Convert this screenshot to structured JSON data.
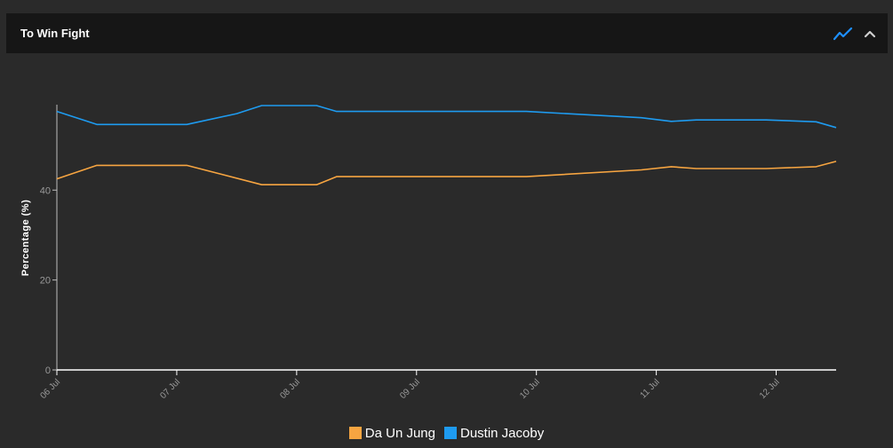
{
  "panel": {
    "title": "To Win Fight",
    "icons": {
      "chart_type": "line-chart-icon",
      "collapse": "chevron-up-icon"
    },
    "accent": "#1e90ff"
  },
  "chart_data": {
    "type": "line",
    "xlabel": "",
    "ylabel": "Percentage (%)",
    "ylim": [
      0,
      59
    ],
    "yticks": [
      0,
      20,
      40
    ],
    "xlim": [
      "2024-07-06",
      "2024-07-12 12:00"
    ],
    "xticks": [
      {
        "x": "2024-07-06",
        "label": "06 Jul"
      },
      {
        "x": "2024-07-07",
        "label": "07 Jul"
      },
      {
        "x": "2024-07-08",
        "label": "08 Jul"
      },
      {
        "x": "2024-07-09",
        "label": "09 Jul"
      },
      {
        "x": "2024-07-10",
        "label": "10 Jul"
      },
      {
        "x": "2024-07-11",
        "label": "11 Jul"
      },
      {
        "x": "2024-07-12",
        "label": "12 Jul"
      }
    ],
    "grid": false,
    "legend": "bottom-center",
    "series": [
      {
        "name": "Da Un Jung",
        "color": "#f7a541",
        "points": [
          [
            "2024-07-06 00:00",
            42.5
          ],
          [
            "2024-07-06 08:00",
            45.5
          ],
          [
            "2024-07-07 02:00",
            45.5
          ],
          [
            "2024-07-07 17:00",
            41.2
          ],
          [
            "2024-07-08 04:00",
            41.2
          ],
          [
            "2024-07-08 08:00",
            43.0
          ],
          [
            "2024-07-09 22:00",
            43.0
          ],
          [
            "2024-07-10 21:00",
            44.5
          ],
          [
            "2024-07-11 03:00",
            45.2
          ],
          [
            "2024-07-11 08:00",
            44.8
          ],
          [
            "2024-07-11 22:00",
            44.8
          ],
          [
            "2024-07-12 08:00",
            45.2
          ],
          [
            "2024-07-12 12:00",
            46.4
          ]
        ]
      },
      {
        "name": "Dustin Jacoby",
        "color": "#1e9bf0",
        "points": [
          [
            "2024-07-06 00:00",
            57.5
          ],
          [
            "2024-07-06 08:00",
            54.6
          ],
          [
            "2024-07-07 02:00",
            54.6
          ],
          [
            "2024-07-07 12:00",
            57.0
          ],
          [
            "2024-07-07 17:00",
            58.8
          ],
          [
            "2024-07-08 04:00",
            58.8
          ],
          [
            "2024-07-08 08:00",
            57.5
          ],
          [
            "2024-07-09 22:00",
            57.5
          ],
          [
            "2024-07-10 21:00",
            56.1
          ],
          [
            "2024-07-11 03:00",
            55.3
          ],
          [
            "2024-07-11 08:00",
            55.6
          ],
          [
            "2024-07-11 22:00",
            55.6
          ],
          [
            "2024-07-12 08:00",
            55.2
          ],
          [
            "2024-07-12 12:00",
            53.9
          ]
        ]
      }
    ]
  }
}
